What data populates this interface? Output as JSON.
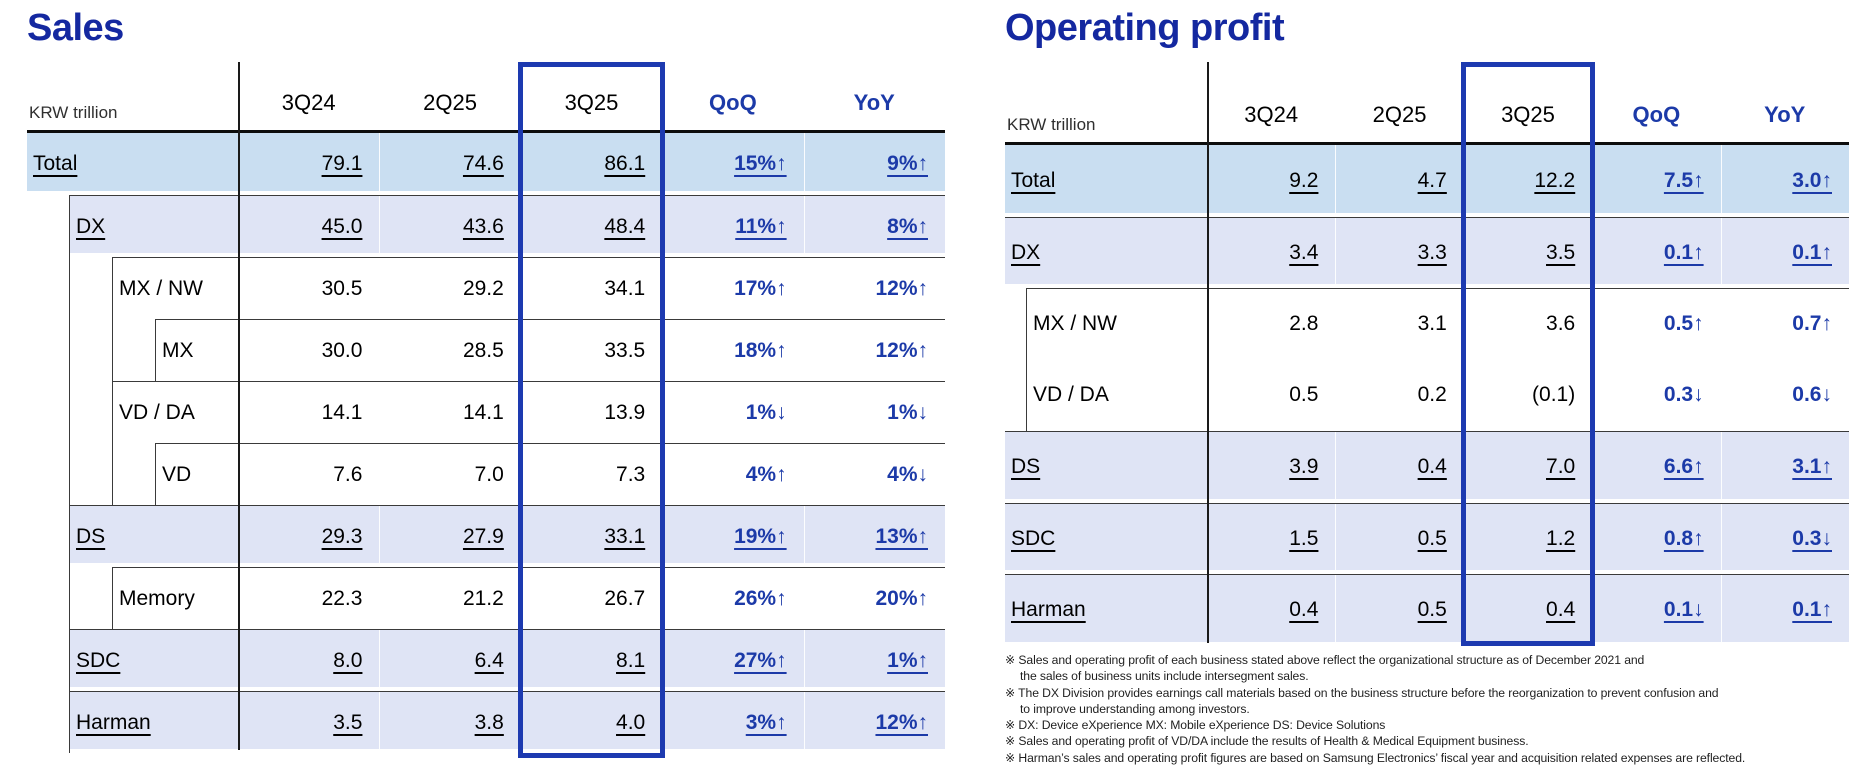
{
  "colors": {
    "title_blue": "#1428a0",
    "highlight_box_blue": "#1d3ab0",
    "accent_text_blue": "#1c3aa8",
    "total_row_bg": "#c9def1",
    "group_row_bg": "#dfe4f5"
  },
  "sales": {
    "title": "Sales",
    "unit": "KRW trillion",
    "columns": [
      "3Q24",
      "2Q25",
      "3Q25",
      "QoQ",
      "YoY"
    ],
    "highlight_column": "3Q25",
    "rows": [
      {
        "label": "Total",
        "level": 0,
        "style": "total",
        "underline": true,
        "values": [
          "79.1",
          "74.6",
          "86.1"
        ],
        "qoq": "15%↑",
        "yoy": "9%↑"
      },
      {
        "label": "DX",
        "level": 1,
        "style": "group",
        "underline": true,
        "values": [
          "45.0",
          "43.6",
          "48.4"
        ],
        "qoq": "11%↑",
        "yoy": "8%↑"
      },
      {
        "label": "MX / NW",
        "level": 2,
        "style": "plain",
        "underline": false,
        "values": [
          "30.5",
          "29.2",
          "34.1"
        ],
        "qoq": "17%↑",
        "yoy": "12%↑"
      },
      {
        "label": "MX",
        "level": 3,
        "style": "plain",
        "underline": false,
        "values": [
          "30.0",
          "28.5",
          "33.5"
        ],
        "qoq": "18%↑",
        "yoy": "12%↑"
      },
      {
        "label": "VD / DA",
        "level": 2,
        "style": "plain",
        "underline": false,
        "values": [
          "14.1",
          "14.1",
          "13.9"
        ],
        "qoq": "1%↓",
        "yoy": "1%↓"
      },
      {
        "label": "VD",
        "level": 3,
        "style": "plain",
        "underline": false,
        "values": [
          "7.6",
          "7.0",
          "7.3"
        ],
        "qoq": "4%↑",
        "yoy": "4%↓"
      },
      {
        "label": "DS",
        "level": 1,
        "style": "group",
        "underline": true,
        "values": [
          "29.3",
          "27.9",
          "33.1"
        ],
        "qoq": "19%↑",
        "yoy": "13%↑"
      },
      {
        "label": "Memory",
        "level": 2,
        "style": "plain",
        "underline": false,
        "values": [
          "22.3",
          "21.2",
          "26.7"
        ],
        "qoq": "26%↑",
        "yoy": "20%↑"
      },
      {
        "label": "SDC",
        "level": 1,
        "style": "group",
        "underline": true,
        "values": [
          "8.0",
          "6.4",
          "8.1"
        ],
        "qoq": "27%↑",
        "yoy": "1%↑"
      },
      {
        "label": "Harman",
        "level": 1,
        "style": "group",
        "underline": true,
        "values": [
          "3.5",
          "3.8",
          "4.0"
        ],
        "qoq": "3%↑",
        "yoy": "12%↑"
      }
    ]
  },
  "operating_profit": {
    "title": "Operating profit",
    "unit": "KRW trillion",
    "columns": [
      "3Q24",
      "2Q25",
      "3Q25",
      "QoQ",
      "YoY"
    ],
    "highlight_column": "3Q25",
    "rows": [
      {
        "label": "Total",
        "level": 0,
        "style": "total",
        "underline": true,
        "values": [
          "9.2",
          "4.7",
          "12.2"
        ],
        "qoq": "7.5↑",
        "yoy": "3.0↑"
      },
      {
        "label": "DX",
        "level": 0,
        "style": "group",
        "underline": true,
        "values": [
          "3.4",
          "3.3",
          "3.5"
        ],
        "qoq": "0.1↑",
        "yoy": "0.1↑"
      },
      {
        "label": "MX / NW",
        "level": 1,
        "style": "plain",
        "underline": false,
        "values": [
          "2.8",
          "3.1",
          "3.6"
        ],
        "qoq": "0.5↑",
        "yoy": "0.7↑"
      },
      {
        "label": "VD / DA",
        "level": 1,
        "style": "plain",
        "underline": false,
        "no_top": true,
        "values": [
          "0.5",
          "0.2",
          "(0.1)"
        ],
        "qoq": "0.3↓",
        "yoy": "0.6↓"
      },
      {
        "label": "DS",
        "level": 0,
        "style": "group",
        "underline": true,
        "values": [
          "3.9",
          "0.4",
          "7.0"
        ],
        "qoq": "6.6↑",
        "yoy": "3.1↑"
      },
      {
        "label": "SDC",
        "level": 0,
        "style": "group",
        "underline": true,
        "values": [
          "1.5",
          "0.5",
          "1.2"
        ],
        "qoq": "0.8↑",
        "yoy": "0.3↓"
      },
      {
        "label": "Harman",
        "level": 0,
        "style": "group",
        "underline": true,
        "values": [
          "0.4",
          "0.5",
          "0.4"
        ],
        "qoq": "0.1↓",
        "yoy": "0.1↑"
      }
    ]
  },
  "footnotes": [
    {
      "lines": [
        "※ Sales and operating profit of each business stated above reflect the organizational structure  as of December 2021 and",
        "the sales of business units include intersegment sales."
      ]
    },
    {
      "lines": [
        "※ The DX Division provides earnings call materials based on the business structure before the reorganization to prevent confusion and",
        "to improve understanding among investors."
      ]
    },
    {
      "lines": [
        "※ DX: Device eXperience MX: Mobile eXperience DS: Device Solutions"
      ]
    },
    {
      "lines": [
        "※ Sales and operating profit of VD/DA include the results of Health & Medical Equipment business."
      ]
    },
    {
      "lines": [
        "※ Harman’s sales and operating profit figures are based on Samsung Electronics’ fiscal year and acquisition related expenses  are reflected."
      ]
    }
  ]
}
